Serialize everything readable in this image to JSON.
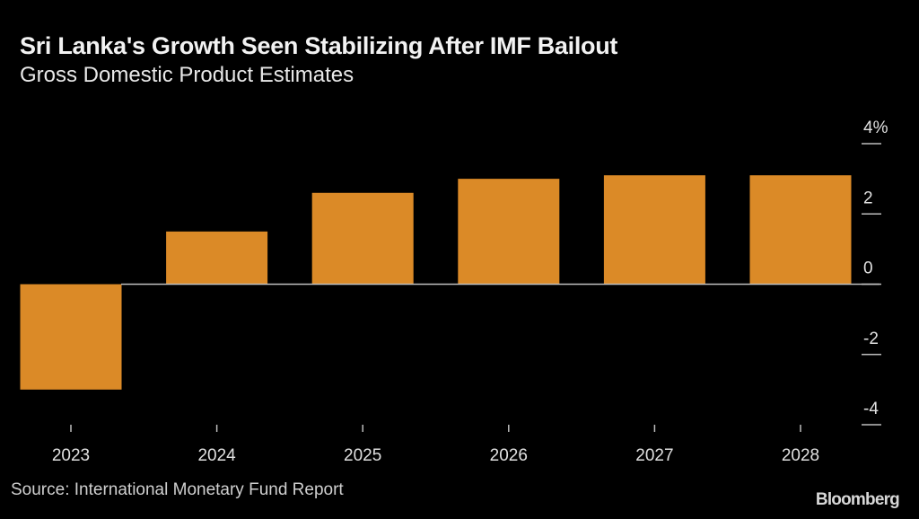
{
  "header": {
    "title": "Sri Lanka's Growth Seen Stabilizing After IMF Bailout",
    "subtitle": "Gross Domestic Product Estimates"
  },
  "footer": {
    "source": "Source: International Monetary Fund Report",
    "brand": "Bloomberg"
  },
  "colors": {
    "bar": "#db8a27",
    "background": "#000000",
    "axis": "#bdbdbd"
  },
  "chart_data": {
    "type": "bar",
    "title": "Sri Lanka's Growth Seen Stabilizing After IMF Bailout",
    "subtitle": "Gross Domestic Product Estimates",
    "xlabel": "",
    "ylabel": "%",
    "categories": [
      "2023",
      "2024",
      "2025",
      "2026",
      "2027",
      "2028"
    ],
    "values": [
      -3.0,
      1.5,
      2.6,
      3.0,
      3.1,
      3.1
    ],
    "ylim": [
      -4,
      4
    ],
    "yticks": [
      4,
      2,
      0,
      -2,
      -4
    ],
    "ytick_labels": [
      "4%",
      "2",
      "0",
      "-2",
      "-4"
    ],
    "axis_position": "right",
    "grid": false,
    "legend": "none"
  }
}
